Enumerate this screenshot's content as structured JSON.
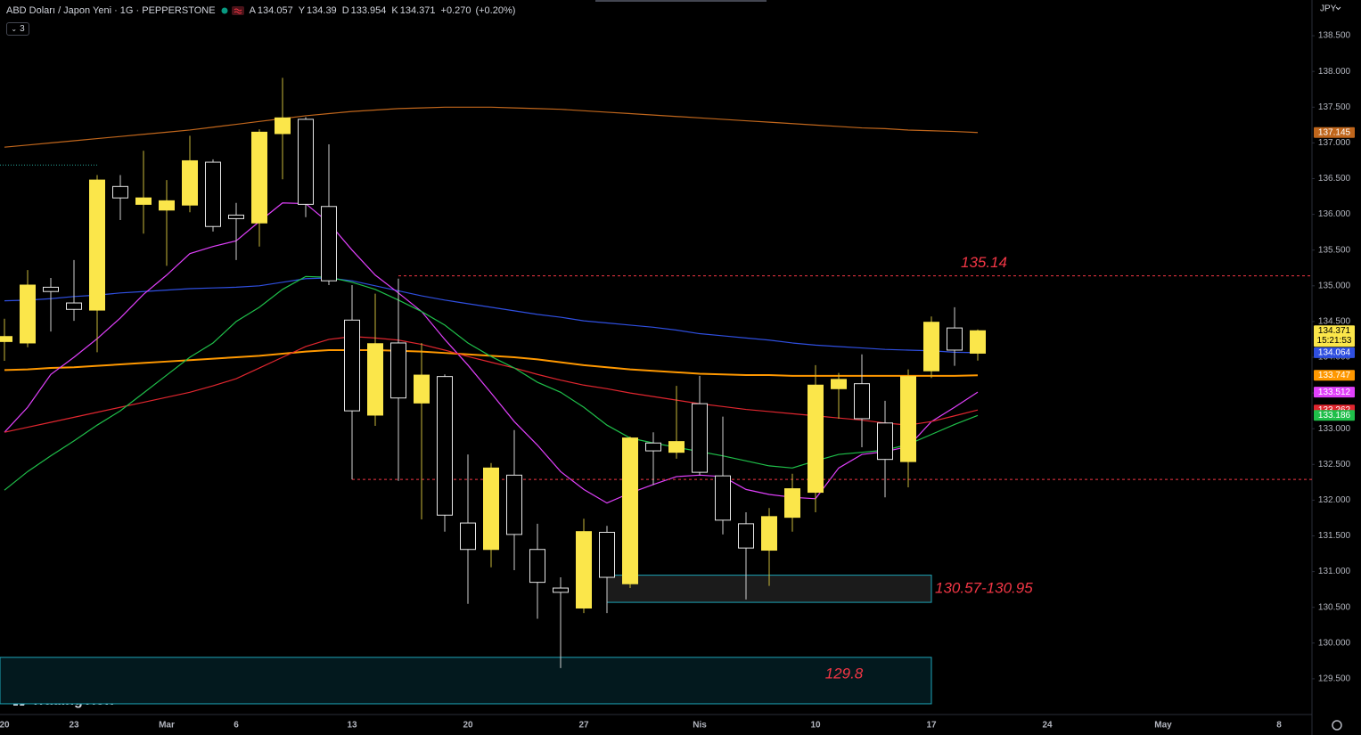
{
  "chart_data": {
    "type": "candlestick",
    "title": "ABD Doları / Japon Yeni · 1G · PEPPERSTONE",
    "ohlc_labels": [
      "A",
      "Y",
      "D",
      "K"
    ],
    "change": "+0.270",
    "change_pct": "(+0.20%)",
    "indicator_count": 3,
    "currency": "JPY",
    "countdown": "15:21:53",
    "watermark": "TradingView",
    "categories": [
      "20",
      null,
      null,
      "23",
      null,
      null,
      null,
      "Mar",
      null,
      null,
      "6",
      null,
      null,
      null,
      null,
      "13",
      null,
      null,
      null,
      null,
      "20",
      null,
      null,
      null,
      null,
      "27",
      null,
      null,
      null,
      null,
      "Nis",
      null,
      null,
      null,
      null,
      "10",
      null,
      null,
      null,
      null,
      "17",
      null,
      null,
      null,
      null,
      "24",
      null,
      null,
      null,
      null,
      "May",
      null,
      null,
      null,
      null,
      "8"
    ],
    "candles": {
      "open": [
        134.22,
        134.2,
        134.98,
        134.76,
        134.66,
        136.39,
        136.14,
        136.06,
        136.13,
        136.73,
        135.99,
        135.88,
        137.13,
        137.33,
        136.11,
        134.52,
        133.19,
        134.2,
        133.36,
        133.73,
        131.68,
        131.31,
        132.35,
        131.31,
        130.77,
        130.49,
        131.55,
        130.83,
        132.8,
        132.67,
        133.35,
        132.34,
        131.67,
        131.3,
        131.76,
        132.11,
        133.56,
        133.63,
        133.08,
        132.54,
        133.81,
        134.41,
        134.057,
        null,
        null,
        null,
        null,
        null,
        null,
        null,
        null,
        null,
        null,
        null,
        null,
        null
      ],
      "high": [
        134.54,
        135.22,
        135.11,
        135.36,
        136.55,
        136.55,
        136.89,
        136.48,
        137.1,
        136.77,
        136.16,
        137.19,
        137.91,
        137.36,
        136.98,
        135.01,
        134.89,
        135.1,
        134.2,
        133.76,
        132.64,
        132.52,
        132.98,
        131.67,
        130.92,
        131.74,
        131.64,
        132.89,
        132.95,
        133.6,
        133.74,
        133.17,
        131.83,
        131.89,
        132.37,
        133.89,
        133.78,
        134.04,
        133.39,
        133.83,
        134.57,
        134.7,
        134.39,
        null,
        null,
        null,
        null,
        null,
        null,
        null,
        null,
        null,
        null,
        null,
        null,
        null
      ],
      "low": [
        133.95,
        134.14,
        134.36,
        134.51,
        134.07,
        135.92,
        135.73,
        135.28,
        136.03,
        135.76,
        135.36,
        135.55,
        136.49,
        135.96,
        135.01,
        132.29,
        133.04,
        132.27,
        131.73,
        131.56,
        130.55,
        131.06,
        131.02,
        130.34,
        129.65,
        130.42,
        130.42,
        130.77,
        132.21,
        132.58,
        132.35,
        131.52,
        130.61,
        130.8,
        131.56,
        131.83,
        133.14,
        132.74,
        132.04,
        132.18,
        133.71,
        133.88,
        133.954,
        null,
        null,
        null,
        null,
        null,
        null,
        null,
        null,
        null,
        null,
        null,
        null,
        null
      ],
      "close": [
        134.29,
        135.01,
        134.92,
        134.67,
        136.48,
        136.23,
        136.23,
        136.19,
        136.75,
        135.83,
        135.94,
        137.15,
        137.35,
        136.14,
        135.07,
        133.25,
        134.19,
        133.43,
        133.75,
        131.79,
        131.31,
        132.45,
        131.52,
        130.85,
        130.71,
        131.56,
        130.92,
        132.87,
        132.69,
        132.82,
        132.39,
        131.72,
        131.33,
        131.77,
        132.16,
        133.61,
        133.69,
        133.14,
        132.57,
        133.73,
        134.49,
        134.1,
        134.371,
        null,
        null,
        null,
        null,
        null,
        null,
        null,
        null,
        null,
        null,
        null,
        null,
        null
      ]
    },
    "up_color": "#fbe64a",
    "down_color": "#000000",
    "series": [
      {
        "color": "#c0661c",
        "values": [
          136.94,
          136.97,
          137.0,
          137.03,
          137.06,
          137.09,
          137.12,
          137.15,
          137.18,
          137.22,
          137.26,
          137.3,
          137.34,
          137.38,
          137.41,
          137.44,
          137.46,
          137.48,
          137.49,
          137.5,
          137.5,
          137.5,
          137.49,
          137.48,
          137.47,
          137.45,
          137.43,
          137.41,
          137.39,
          137.37,
          137.35,
          137.33,
          137.31,
          137.29,
          137.27,
          137.25,
          137.23,
          137.21,
          137.2,
          137.18,
          137.17,
          137.16,
          137.145,
          null,
          null,
          null,
          null,
          null,
          null,
          null,
          null,
          null,
          null,
          null,
          null,
          null
        ]
      },
      {
        "color": "#ff9800",
        "values": [
          133.82,
          133.83,
          133.85,
          133.86,
          133.88,
          133.9,
          133.92,
          133.94,
          133.96,
          133.98,
          134.0,
          134.02,
          134.05,
          134.08,
          134.1,
          134.1,
          134.1,
          134.09,
          134.08,
          134.06,
          134.04,
          134.02,
          134.0,
          133.97,
          133.93,
          133.89,
          133.86,
          133.83,
          133.81,
          133.79,
          133.77,
          133.76,
          133.75,
          133.75,
          133.74,
          133.74,
          133.74,
          133.74,
          133.74,
          133.74,
          133.74,
          133.74,
          133.747,
          null,
          null,
          null,
          null,
          null,
          null,
          null,
          null,
          null,
          null,
          null,
          null,
          null
        ]
      },
      {
        "color": "#2f4fe0",
        "values": [
          134.79,
          134.8,
          134.82,
          134.85,
          134.87,
          134.9,
          134.92,
          134.94,
          134.96,
          134.97,
          134.98,
          135.0,
          135.05,
          135.1,
          135.11,
          135.07,
          135.0,
          134.93,
          134.86,
          134.8,
          134.75,
          134.7,
          134.65,
          134.6,
          134.56,
          134.51,
          134.48,
          134.45,
          134.42,
          134.38,
          134.33,
          134.3,
          134.27,
          134.24,
          134.2,
          134.17,
          134.15,
          134.13,
          134.11,
          134.1,
          134.09,
          134.07,
          134.064,
          null,
          null,
          null,
          null,
          null,
          null,
          null,
          null,
          null,
          null,
          null,
          null,
          null
        ]
      },
      {
        "color": "#e040fb",
        "values": [
          132.95,
          133.3,
          133.76,
          134.0,
          134.26,
          134.55,
          134.88,
          135.15,
          135.45,
          135.55,
          135.63,
          135.9,
          136.16,
          136.15,
          135.88,
          135.5,
          135.15,
          134.9,
          134.64,
          134.25,
          133.89,
          133.5,
          133.1,
          132.77,
          132.4,
          132.15,
          131.96,
          132.1,
          132.22,
          132.33,
          132.35,
          132.33,
          132.15,
          132.08,
          132.04,
          132.02,
          132.45,
          132.64,
          132.68,
          132.75,
          133.1,
          133.3,
          133.512,
          null,
          null,
          null,
          null,
          null,
          null,
          null,
          null,
          null,
          null,
          null,
          null,
          null
        ]
      },
      {
        "color": "#e0262f",
        "values": [
          132.95,
          133.02,
          133.09,
          133.16,
          133.23,
          133.3,
          133.37,
          133.44,
          133.51,
          133.6,
          133.7,
          133.85,
          134.0,
          134.15,
          134.25,
          134.29,
          134.27,
          134.24,
          134.18,
          134.1,
          134.01,
          133.93,
          133.85,
          133.76,
          133.68,
          133.61,
          133.56,
          133.5,
          133.45,
          133.4,
          133.35,
          133.31,
          133.27,
          133.24,
          133.21,
          133.18,
          133.15,
          133.12,
          133.08,
          133.05,
          133.1,
          133.18,
          133.262,
          null,
          null,
          null,
          null,
          null,
          null,
          null,
          null,
          null,
          null,
          null,
          null,
          null
        ]
      },
      {
        "color": "#1fbf4a",
        "values": [
          132.14,
          132.4,
          132.62,
          132.83,
          133.05,
          133.25,
          133.5,
          133.75,
          134.0,
          134.2,
          134.5,
          134.7,
          134.95,
          135.13,
          135.12,
          135.05,
          134.95,
          134.8,
          134.64,
          134.45,
          134.2,
          134.01,
          133.85,
          133.65,
          133.51,
          133.3,
          133.05,
          132.87,
          132.8,
          132.74,
          132.68,
          132.62,
          132.55,
          132.48,
          132.45,
          132.55,
          132.64,
          132.67,
          132.7,
          132.78,
          132.92,
          133.06,
          133.186,
          null,
          null,
          null,
          null,
          null,
          null,
          null,
          null,
          null,
          null,
          null,
          null,
          null
        ]
      }
    ],
    "levels": [
      {
        "value": 135.14,
        "color": "#f23645"
      },
      {
        "value": 132.29,
        "color": "#f23645"
      },
      {
        "value": 136.69,
        "color": "#26a69a"
      }
    ],
    "zones": [
      {
        "low": 130.57,
        "high": 130.95,
        "label": "130.57-130.95"
      },
      {
        "low": 129.15,
        "high": 129.8
      }
    ],
    "ylim": [
      129.0,
      139.0
    ],
    "yticks": [
      {
        "value": 129.5,
        "label": "129.500"
      },
      {
        "value": 130,
        "label": "130.000"
      },
      {
        "value": 130.5,
        "label": "130.500"
      },
      {
        "value": 131,
        "label": "131.000"
      },
      {
        "value": 131.5,
        "label": "131.500"
      },
      {
        "value": 132,
        "label": "132.000"
      },
      {
        "value": 132.5,
        "label": "132.500"
      },
      {
        "value": 133,
        "label": "133.000"
      },
      {
        "value": 133.5,
        "label": "133.500"
      },
      {
        "value": 134,
        "label": "134.000"
      },
      {
        "value": 134.5,
        "label": "134.500"
      },
      {
        "value": 135,
        "label": "135.000"
      },
      {
        "value": 135.5,
        "label": "135.500"
      },
      {
        "value": 136,
        "label": "136.000"
      },
      {
        "value": 136.5,
        "label": "136.500"
      },
      {
        "value": 137,
        "label": "137.000"
      },
      {
        "value": 137.5,
        "label": "137.500"
      },
      {
        "value": 138,
        "label": "138.000"
      },
      {
        "value": 138.5,
        "label": "138.500"
      }
    ],
    "grid": false
  }
}
